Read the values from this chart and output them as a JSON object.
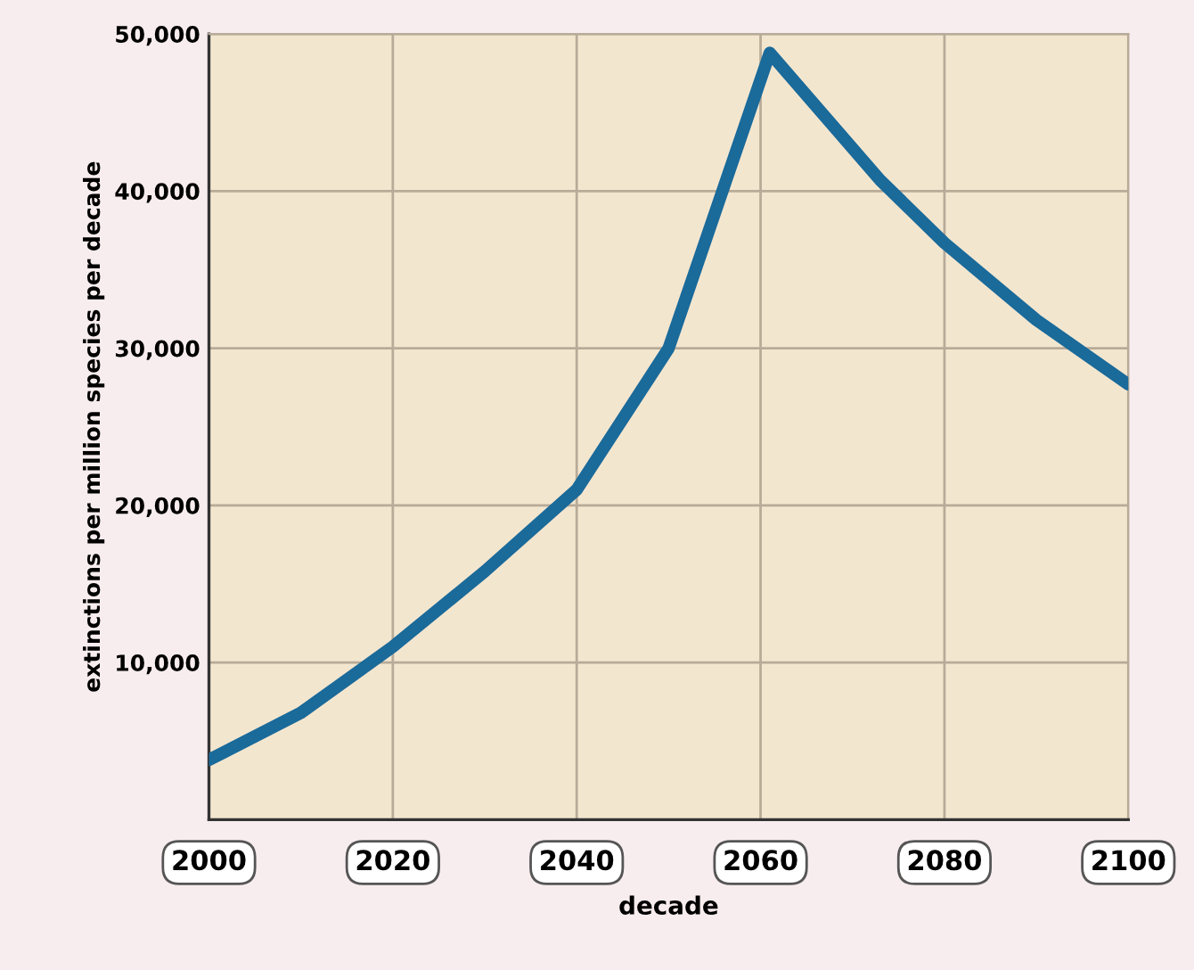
{
  "chart_data": {
    "type": "line",
    "xlabel": "decade",
    "ylabel": "extinctions per million species per decade",
    "x": [
      2000,
      2010,
      2020,
      2030,
      2040,
      2050,
      2061,
      2073,
      2080,
      2090,
      2100
    ],
    "series": [
      {
        "color": "#1a6a9a",
        "values": [
          3800,
          6800,
          11000,
          15800,
          21000,
          30000,
          48800,
          40700,
          36700,
          31800,
          27700
        ]
      }
    ],
    "xlim": [
      2000,
      2100
    ],
    "xticks": [
      2000,
      2020,
      2040,
      2060,
      2080,
      2100
    ],
    "ylim": [
      0,
      50000
    ],
    "yticks": [
      {
        "value": 10000,
        "label": "10,000"
      },
      {
        "value": 20000,
        "label": "20,000"
      },
      {
        "value": 30000,
        "label": "30,000"
      },
      {
        "value": 40000,
        "label": "40,000"
      },
      {
        "value": 50000,
        "label": "50,000"
      }
    ],
    "grid": true,
    "marker": "none",
    "line_style": "solid"
  }
}
